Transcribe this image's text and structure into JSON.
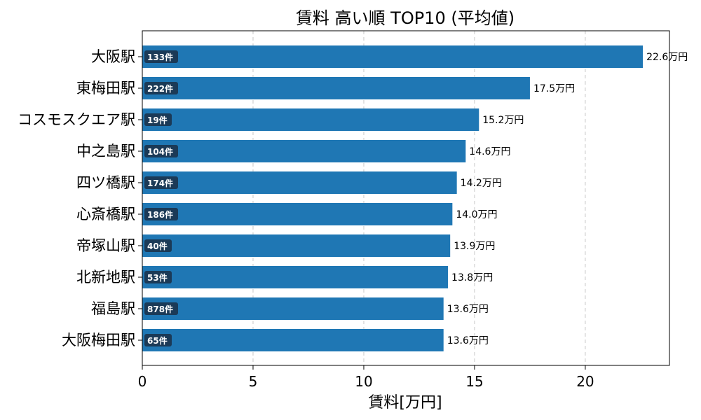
{
  "chart_data": {
    "type": "bar",
    "orientation": "horizontal",
    "title": "賃料 高い順 TOP10 (平均値)",
    "xlabel": "賃料[万円]",
    "ylabel": "",
    "xlim": [
      0,
      23.8
    ],
    "xticks": [
      0,
      5,
      10,
      15,
      20
    ],
    "grid": "x-dashed",
    "categories": [
      "大阪駅",
      "東梅田駅",
      "コスモスクエア駅",
      "中之島駅",
      "四ツ橋駅",
      "心斎橋駅",
      "帝塚山駅",
      "北新地駅",
      "福島駅",
      "大阪梅田駅"
    ],
    "values": [
      22.6,
      17.5,
      15.2,
      14.6,
      14.2,
      14.0,
      13.9,
      13.8,
      13.6,
      13.6
    ],
    "value_labels": [
      "22.6万円",
      "17.5万円",
      "15.2万円",
      "14.6万円",
      "14.2万円",
      "14.0万円",
      "13.9万円",
      "13.8万円",
      "13.6万円",
      "13.6万円"
    ],
    "counts": [
      "133件",
      "222件",
      "19件",
      "104件",
      "174件",
      "186件",
      "40件",
      "53件",
      "878件",
      "65件"
    ],
    "colors": {
      "bar": "#1f77b4",
      "badge": "#1b3a57",
      "grid": "#c8c8c8"
    }
  }
}
